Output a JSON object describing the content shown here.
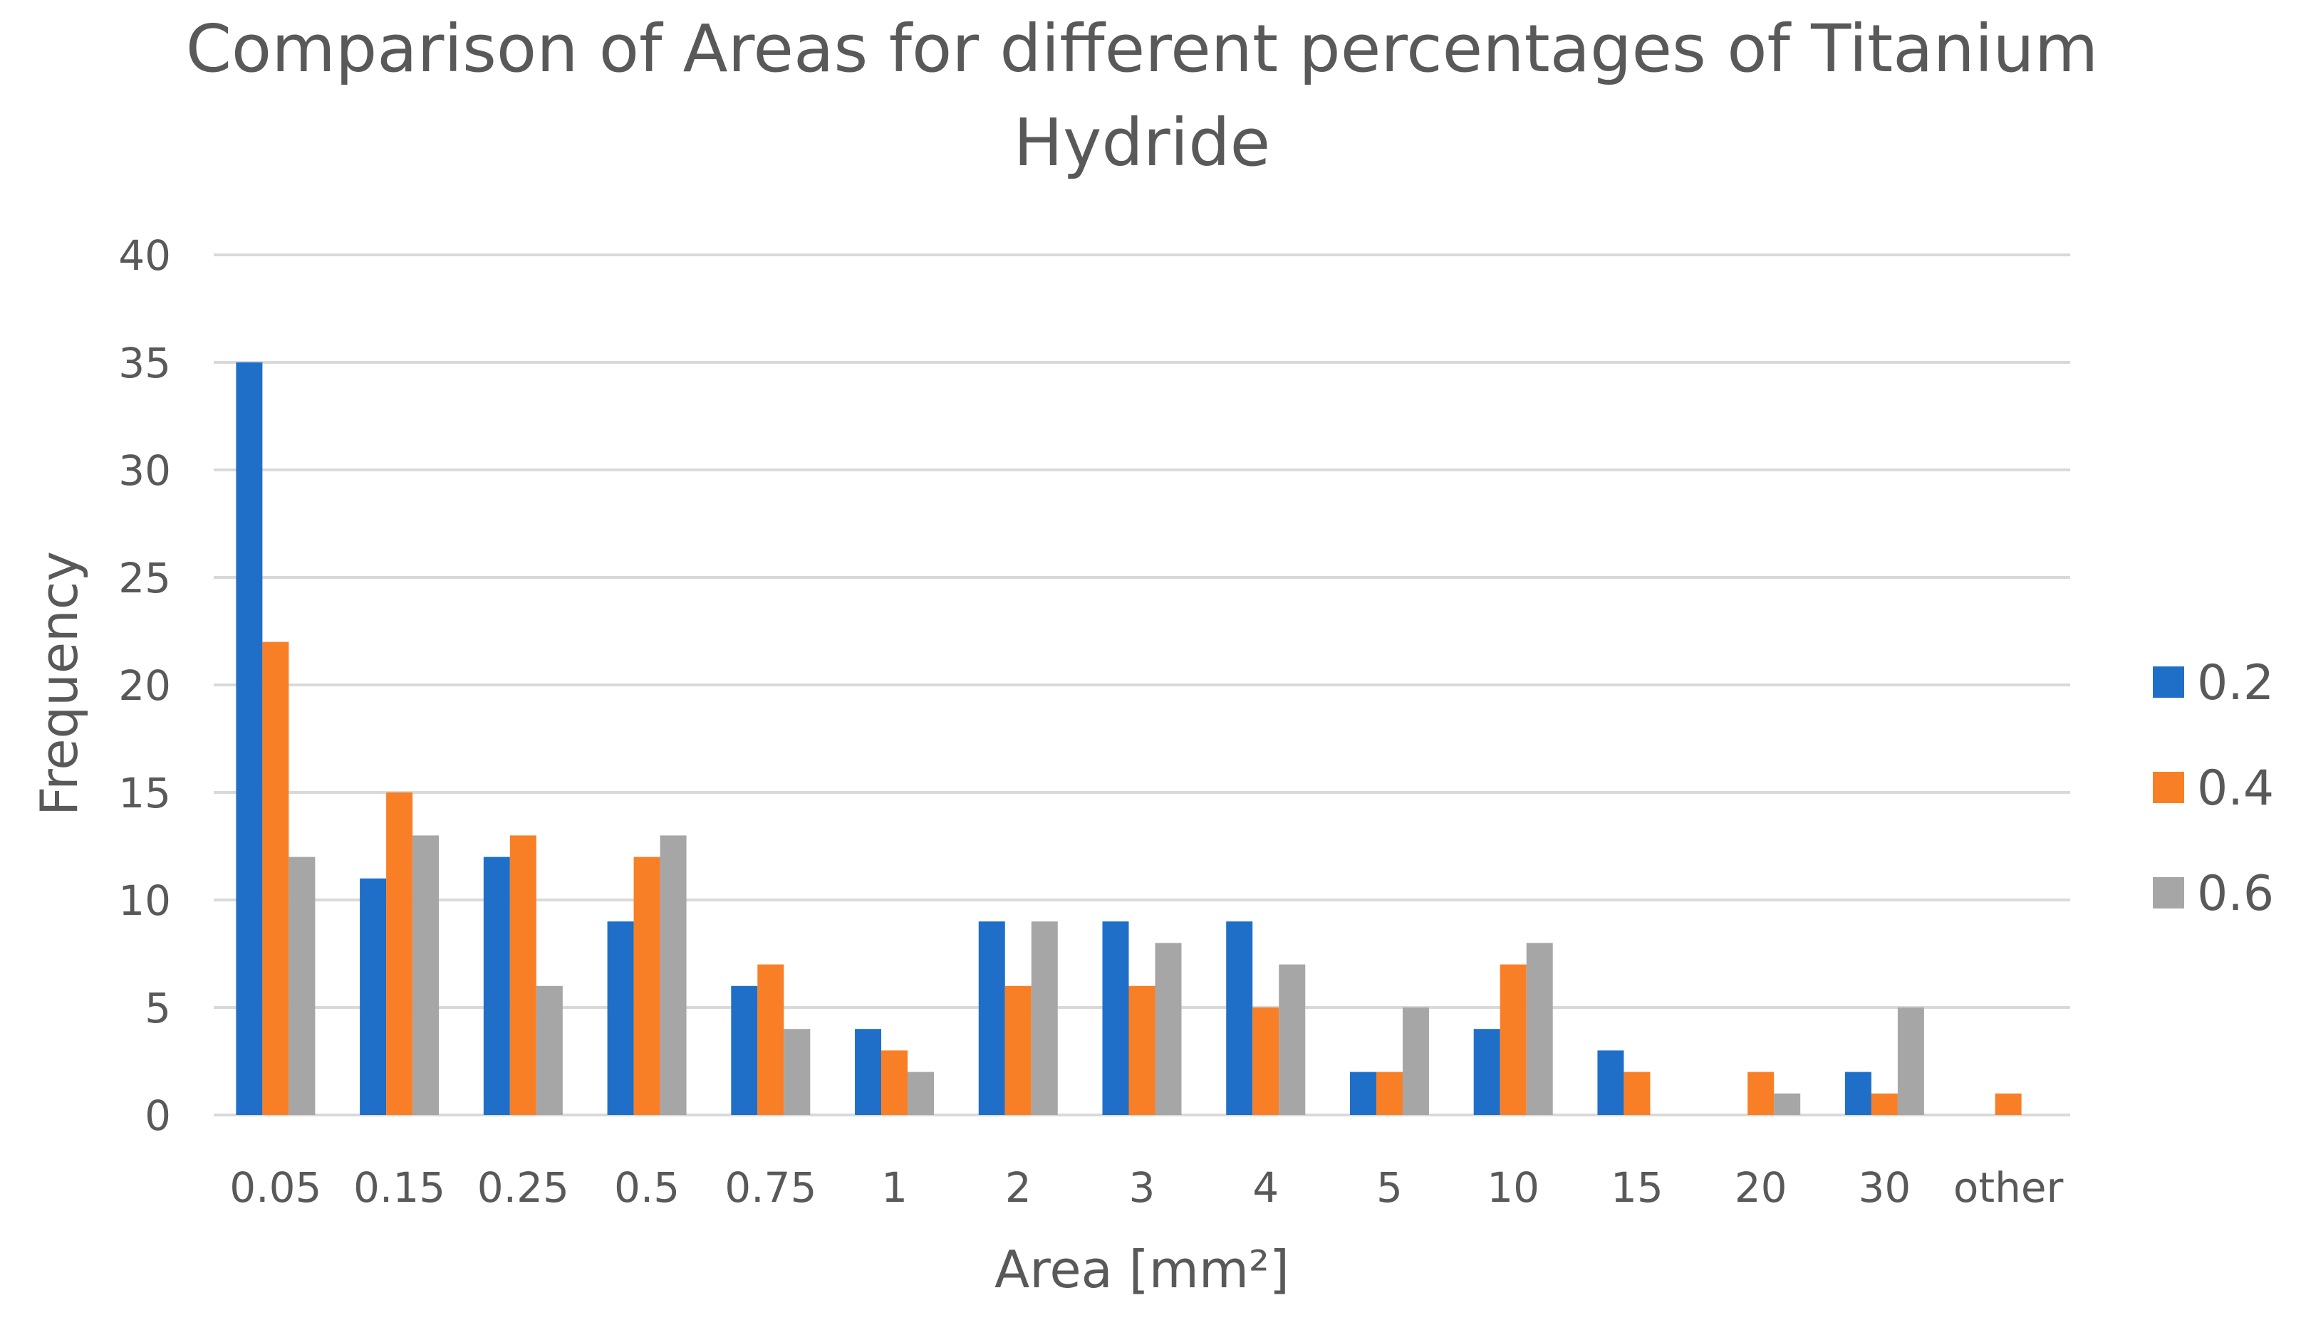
{
  "chart_data": {
    "type": "bar",
    "title_lines": [
      "Comparison of Areas for different percentages of Titanium",
      "Hydride"
    ],
    "xlabel": "Area [mm²]",
    "ylabel": "Frequency",
    "ylim": [
      0,
      40
    ],
    "yticks": [
      0,
      5,
      10,
      15,
      20,
      25,
      30,
      35,
      40
    ],
    "grid": true,
    "legend_position": "right",
    "categories": [
      "0.05",
      "0.15",
      "0.25",
      "0.5",
      "0.75",
      "1",
      "2",
      "3",
      "4",
      "5",
      "10",
      "15",
      "20",
      "30",
      "other"
    ],
    "series": [
      {
        "name": "0.2",
        "color": "#1f6fc8",
        "values": [
          35,
          11,
          12,
          9,
          6,
          4,
          9,
          9,
          9,
          2,
          4,
          3,
          0,
          2,
          0
        ]
      },
      {
        "name": "0.4",
        "color": "#f97f26",
        "values": [
          22,
          15,
          13,
          12,
          7,
          3,
          6,
          6,
          5,
          2,
          7,
          2,
          2,
          1,
          1
        ]
      },
      {
        "name": "0.6",
        "color": "#a6a6a6",
        "values": [
          12,
          13,
          6,
          13,
          4,
          2,
          9,
          8,
          7,
          5,
          8,
          0,
          1,
          5,
          0
        ]
      }
    ]
  }
}
